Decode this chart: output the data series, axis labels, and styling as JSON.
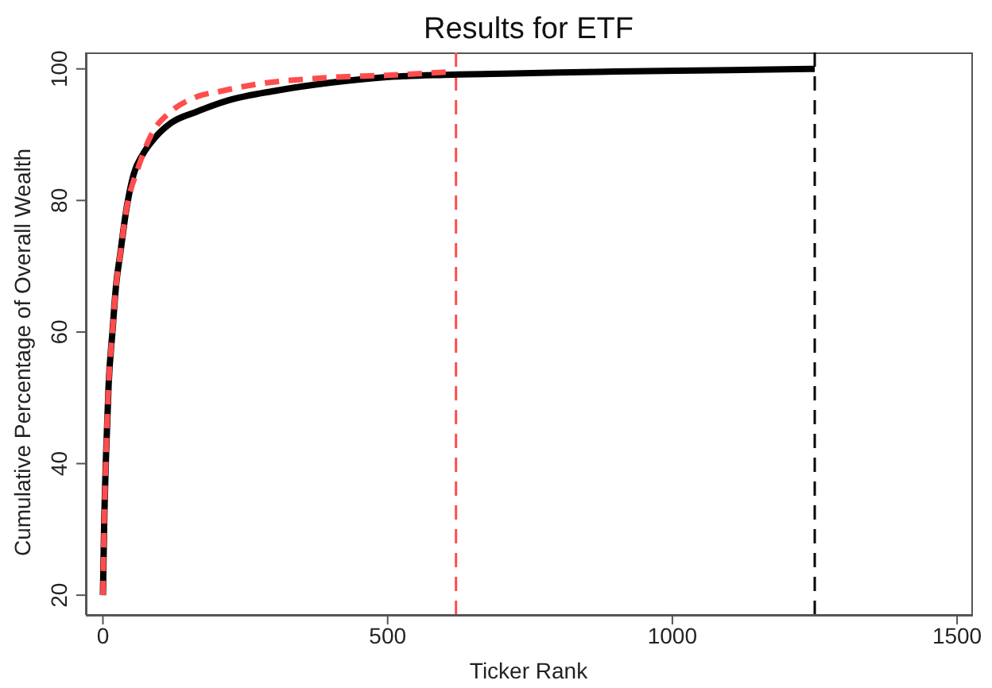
{
  "chart_data": {
    "type": "line",
    "title": "Results for ETF",
    "xlabel": "Ticker Rank",
    "ylabel": "Cumulative Percentage of Overall Wealth",
    "xlim": [
      -30,
      1525
    ],
    "ylim": [
      17,
      102.5
    ],
    "xticks": [
      0,
      500,
      1000,
      1500
    ],
    "yticks": [
      20,
      40,
      60,
      80,
      100
    ],
    "grid": false,
    "series": [
      {
        "color": "#000000",
        "line_style": "solid",
        "x": [
          0,
          2,
          5.6,
          10,
          16.7,
          23,
          30.6,
          40,
          54,
          70,
          91,
          120,
          165,
          220,
          305,
          400,
          490,
          600,
          720,
          900,
          1100,
          1250
        ],
        "values": [
          20,
          30,
          41.6,
          52,
          60,
          67,
          72,
          78,
          84,
          87,
          89.5,
          91.8,
          93.5,
          95.2,
          96.7,
          97.9,
          98.7,
          99.1,
          99.3,
          99.6,
          99.8,
          100
        ]
      },
      {
        "color": "#ff4d4d",
        "line_style": "dashed",
        "x": [
          0,
          2,
          5.6,
          10,
          16.7,
          23,
          30.6,
          40,
          62,
          85,
          119,
          160,
          212,
          280,
          350,
          420,
          490,
          560,
          616
        ],
        "values": [
          20,
          30,
          41.6,
          52,
          60,
          67,
          72,
          78,
          85,
          90,
          93.5,
          95.6,
          96.7,
          97.8,
          98.4,
          98.8,
          99,
          99.3,
          99.6
        ]
      }
    ],
    "ref_lines": [
      {
        "axis": "x",
        "value": 620,
        "color": "#ff4d4d",
        "line_style": "dashed"
      },
      {
        "axis": "x",
        "value": 1250,
        "color": "#000000",
        "line_style": "dashed"
      }
    ]
  }
}
